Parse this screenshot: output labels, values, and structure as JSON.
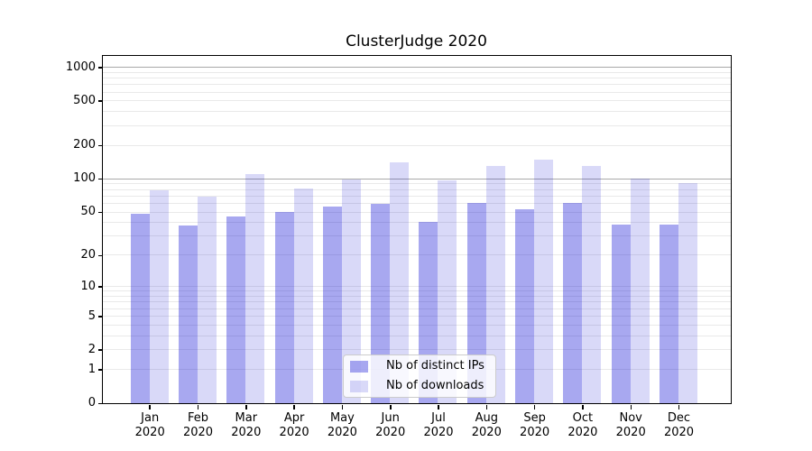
{
  "title": "ClusterJudge 2020",
  "chart_data": {
    "type": "bar",
    "title": "ClusterJudge 2020",
    "categories": [
      "Jan 2020",
      "Feb 2020",
      "Mar 2020",
      "Apr 2020",
      "May 2020",
      "Jun 2020",
      "Jul 2020",
      "Aug 2020",
      "Sep 2020",
      "Oct 2020",
      "Nov 2020",
      "Dec 2020"
    ],
    "series": [
      {
        "name": "Nb of distinct IPs",
        "fill": "rgba(0,0,211,0.34)",
        "legend_swatch": "#a8a8f0",
        "values": [
          48,
          37,
          45,
          50,
          56,
          59,
          40,
          60,
          52,
          60,
          38,
          38
        ]
      },
      {
        "name": "Nb of downloads",
        "fill": "rgba(0,0,208,0.15)",
        "legend_swatch": "#d9d9f8",
        "values": [
          78,
          68,
          110,
          81,
          97,
          140,
          95,
          130,
          148,
          130,
          99,
          91
        ]
      }
    ],
    "xlabel": "",
    "ylabel": "",
    "yscale": "log1p",
    "ylim": [
      0,
      1250
    ],
    "yticks": [
      0,
      1,
      2,
      5,
      10,
      20,
      50,
      100,
      200,
      500,
      1000
    ],
    "minor_grid_values": [
      1,
      2,
      3,
      4,
      5,
      6,
      7,
      8,
      9,
      10,
      20,
      30,
      40,
      50,
      60,
      70,
      80,
      90,
      200,
      300,
      400,
      500,
      600,
      700,
      800,
      900
    ],
    "major_grid_values": [
      100,
      1000
    ],
    "grid": true,
    "legend_position": "lower center"
  },
  "colors": {
    "background": "#ffffff",
    "spine": "#000000",
    "minor_grid": "#e9e9e9",
    "major_grid": "#a9a9a9",
    "ips_bar_on_white": "#a8a8f0",
    "downloads_bar_on_white": "#d9d9f8"
  }
}
